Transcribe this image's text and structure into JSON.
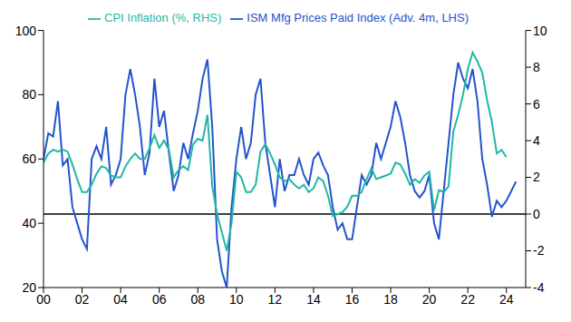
{
  "chart_data": {
    "type": "line",
    "x": [
      2000,
      2000.25,
      2000.5,
      2000.75,
      2001,
      2001.25,
      2001.5,
      2001.75,
      2002,
      2002.25,
      2002.5,
      2002.75,
      2003,
      2003.25,
      2003.5,
      2003.75,
      2004,
      2004.25,
      2004.5,
      2004.75,
      2005,
      2005.25,
      2005.5,
      2005.75,
      2006,
      2006.25,
      2006.5,
      2006.75,
      2007,
      2007.25,
      2007.5,
      2007.75,
      2008,
      2008.25,
      2008.5,
      2008.75,
      2009,
      2009.25,
      2009.5,
      2009.75,
      2010,
      2010.25,
      2010.5,
      2010.75,
      2011,
      2011.25,
      2011.5,
      2011.75,
      2012,
      2012.25,
      2012.5,
      2012.75,
      2013,
      2013.25,
      2013.5,
      2013.75,
      2014,
      2014.25,
      2014.5,
      2014.75,
      2015,
      2015.25,
      2015.5,
      2015.75,
      2016,
      2016.25,
      2016.5,
      2016.75,
      2017,
      2017.25,
      2017.5,
      2017.75,
      2018,
      2018.25,
      2018.5,
      2018.75,
      2019,
      2019.25,
      2019.5,
      2019.75,
      2020,
      2020.25,
      2020.5,
      2020.75,
      2021,
      2021.25,
      2021.5,
      2021.75,
      2022,
      2022.25,
      2022.5,
      2022.75,
      2023,
      2023.25,
      2023.5,
      2023.75,
      2024,
      2024.25,
      2024.5
    ],
    "series": [
      {
        "name": "ISM Mfg Prices Paid Index (Adv. 4m, LHS)",
        "color": "#2454cc",
        "values": [
          60,
          68,
          67,
          78,
          58,
          60,
          45,
          40,
          35,
          32,
          60,
          64,
          60,
          70,
          52,
          55,
          60,
          80,
          88,
          80,
          70,
          55,
          62,
          85,
          70,
          75,
          62,
          50,
          55,
          65,
          60,
          68,
          75,
          85,
          91,
          70,
          35,
          25,
          20,
          45,
          60,
          70,
          60,
          65,
          80,
          85,
          65,
          55,
          45,
          60,
          50,
          55,
          55,
          60,
          55,
          52,
          60,
          62,
          58,
          55,
          45,
          38,
          40,
          35,
          35,
          45,
          55,
          52,
          55,
          65,
          60,
          65,
          70,
          78,
          73,
          65,
          55,
          50,
          48,
          50,
          55,
          40,
          35,
          50,
          65,
          80,
          90,
          85,
          82,
          88,
          78,
          60,
          52,
          42,
          47,
          45,
          47,
          50,
          53
        ]
      },
      {
        "name": "CPI Inflation (%, RHS)",
        "color": "#1fb8a6",
        "axis": "y2",
        "values": [
          2.8,
          3.3,
          3.5,
          3.4,
          3.5,
          3.4,
          2.7,
          1.9,
          1.2,
          1.2,
          1.6,
          2.2,
          2.6,
          2.5,
          2.1,
          2.0,
          2.0,
          2.6,
          3.0,
          3.3,
          3.0,
          3.0,
          3.6,
          4.3,
          3.6,
          4.0,
          3.5,
          2.0,
          2.4,
          2.6,
          2.4,
          3.8,
          4.1,
          4.0,
          5.4,
          1.5,
          0.0,
          -1.0,
          -2.0,
          -0.5,
          2.3,
          2.0,
          1.2,
          1.2,
          1.6,
          3.4,
          3.8,
          3.3,
          2.7,
          2.0,
          1.8,
          1.9,
          1.6,
          1.4,
          1.6,
          1.2,
          1.4,
          2.0,
          1.8,
          1.0,
          -0.1,
          0.0,
          0.1,
          0.4,
          1.0,
          1.0,
          1.2,
          1.9,
          2.5,
          1.9,
          2.0,
          2.1,
          2.2,
          2.8,
          2.7,
          2.2,
          1.6,
          1.9,
          1.7,
          2.1,
          2.3,
          0.2,
          1.3,
          1.2,
          1.5,
          4.5,
          5.4,
          6.5,
          7.9,
          8.8,
          8.3,
          7.7,
          6.2,
          5.0,
          3.3,
          3.5,
          3.1,
          null,
          null
        ]
      }
    ],
    "xlim": [
      2000,
      2025
    ],
    "xticks": [
      {
        "value": 2000,
        "label": "00"
      },
      {
        "value": 2002,
        "label": "02"
      },
      {
        "value": 2004,
        "label": "04"
      },
      {
        "value": 2006,
        "label": "06"
      },
      {
        "value": 2008,
        "label": "08"
      },
      {
        "value": 2010,
        "label": "10"
      },
      {
        "value": 2012,
        "label": "12"
      },
      {
        "value": 2014,
        "label": "14"
      },
      {
        "value": 2016,
        "label": "16"
      },
      {
        "value": 2018,
        "label": "18"
      },
      {
        "value": 2020,
        "label": "20"
      },
      {
        "value": 2022,
        "label": "22"
      },
      {
        "value": 2024,
        "label": "24"
      }
    ],
    "ylim": [
      20,
      100
    ],
    "yticks": [
      20,
      40,
      60,
      80,
      100
    ],
    "y2lim": [
      -4,
      10
    ],
    "y2ticks": [
      -4,
      -2,
      0,
      2,
      4,
      6,
      8,
      10
    ],
    "grid": false,
    "legend": "top"
  }
}
